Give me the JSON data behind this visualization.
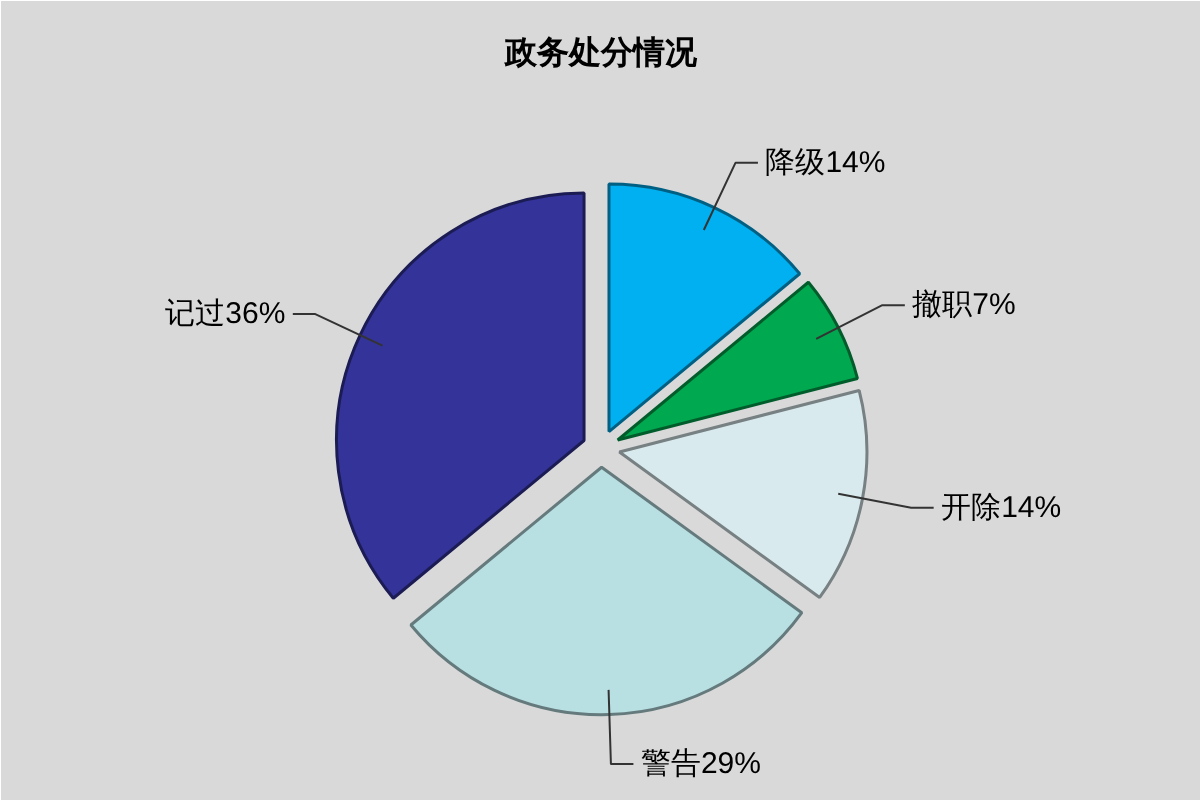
{
  "chart_data": {
    "type": "pie",
    "title": "政务处分情况",
    "categories": [
      "降级",
      "撤职",
      "开除",
      "警告",
      "记过"
    ],
    "values": [
      14,
      7,
      14,
      29,
      36
    ],
    "value_labels": [
      "14%",
      "7%",
      "14%",
      "29%",
      "36%"
    ],
    "colors": [
      "#00b0f0",
      "#00a84f",
      "#d9eaee",
      "#b8dfe2",
      "#333399"
    ]
  }
}
